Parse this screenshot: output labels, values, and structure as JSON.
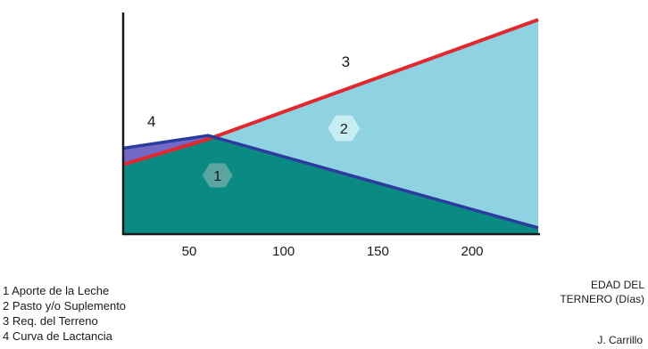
{
  "chart_data": {
    "type": "area",
    "x_ticks": [
      50,
      100,
      150,
      200
    ],
    "xlim": [
      15,
      235
    ],
    "xlabel": "EDAD DEL TERNERO (Días)",
    "grid": false,
    "series": [
      {
        "name": "Req. del Terreno",
        "label": "3",
        "color": "#e0282e",
        "points": [
          [
            15,
            0.38
          ],
          [
            60,
            0.52
          ],
          [
            235,
            1.18
          ]
        ]
      },
      {
        "name": "Curva de Lactancia",
        "label": "4",
        "color": "#2b3c9e",
        "points": [
          [
            15,
            0.47
          ],
          [
            60,
            0.54
          ],
          [
            235,
            0.03
          ]
        ]
      }
    ],
    "regions": [
      {
        "label": "1",
        "name": "Aporte de la Leche",
        "color": "#0b8a84"
      },
      {
        "label": "2",
        "name": "Pasto y/o Suplemento",
        "color": "#8fd2e2"
      },
      {
        "label": "4",
        "name": "Curva de Lactancia",
        "color": "#7268c6"
      }
    ],
    "region_labels": {
      "r1": {
        "text": "1",
        "x": 65,
        "y": 0.32
      },
      "r2": {
        "text": "2",
        "x": 132,
        "y": 0.58
      },
      "c3": {
        "text": "3",
        "x": 133,
        "y": 0.95
      },
      "c4": {
        "text": "4",
        "x": 30,
        "y": 0.62
      }
    },
    "ylim": [
      0,
      1.22
    ]
  },
  "legend": [
    {
      "label": "1 Aporte de la Leche"
    },
    {
      "label": "2 Pasto y/o Suplemento"
    },
    {
      "label": "3 Req. del Terreno"
    },
    {
      "label": "4 Curva de Lactancia"
    }
  ],
  "axis_note": {
    "line1": "EDAD DEL",
    "line2": "TERNERO (Días)"
  },
  "author": "J. Carrillo",
  "colors": {
    "axis": "#1a1a1a",
    "hex_dark": "#5aa5a0",
    "hex_light": "#c8eef4"
  }
}
